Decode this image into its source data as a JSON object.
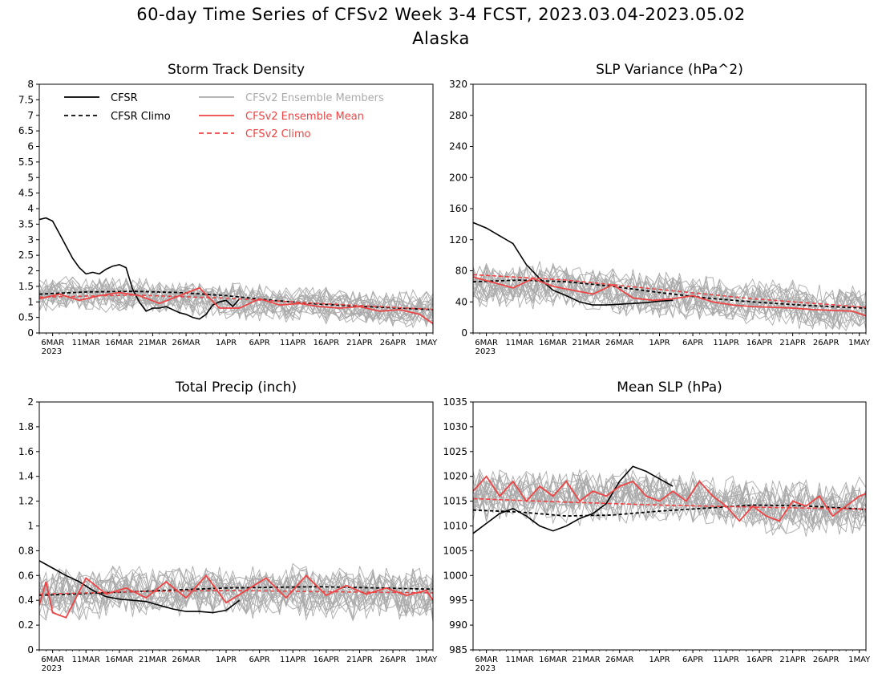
{
  "figure": {
    "title_line1": "60-day Time Series of CFSv2 Week 3-4 FCST, 2023.03.04-2023.05.02",
    "title_line2": "Alaska",
    "x_year_label": "2023"
  },
  "colors": {
    "cfsr": "#000000",
    "ensemble_member": "#aaaaaa",
    "ensemble_mean": "#ee4444",
    "cfsv2_climo": "#ee4444",
    "axis": "#000000"
  },
  "legend": {
    "cfsr": "CFSR",
    "cfsr_climo": "CFSR Climo",
    "members": "CFSv2 Ensemble Members",
    "ens_mean": "CFSv2 Ensemble Mean",
    "cfsv2_climo": "CFSv2 Climo"
  },
  "chart_data": [
    {
      "type": "line",
      "title": "Storm Track Density",
      "x_start": "2023-03-04",
      "x_end": "2023-05-02",
      "x_ticks": [
        "6MAR",
        "11MAR",
        "16MAR",
        "21MAR",
        "26MAR",
        "1APR",
        "6APR",
        "11APR",
        "16APR",
        "21APR",
        "26APR",
        "1MAY"
      ],
      "x_tick_dates": [
        "2023-03-06",
        "2023-03-11",
        "2023-03-16",
        "2023-03-21",
        "2023-03-26",
        "2023-04-01",
        "2023-04-06",
        "2023-04-11",
        "2023-04-16",
        "2023-04-21",
        "2023-04-26",
        "2023-05-01"
      ],
      "ylim": [
        0,
        8
      ],
      "y_ticks": [
        0,
        0.5,
        1,
        1.5,
        2,
        2.5,
        3,
        3.5,
        4,
        4.5,
        5,
        5.5,
        6,
        6.5,
        7,
        7.5,
        8
      ],
      "legend_location": "top-left",
      "series": [
        {
          "name": "CFSR",
          "style": "solid-black",
          "x": [
            "2023-03-04",
            "2023-03-05",
            "2023-03-06",
            "2023-03-07",
            "2023-03-08",
            "2023-03-09",
            "2023-03-10",
            "2023-03-11",
            "2023-03-12",
            "2023-03-13",
            "2023-03-14",
            "2023-03-15",
            "2023-03-16",
            "2023-03-17",
            "2023-03-18",
            "2023-03-19",
            "2023-03-20",
            "2023-03-21",
            "2023-03-22",
            "2023-03-23",
            "2023-03-24",
            "2023-03-25",
            "2023-03-26",
            "2023-03-27",
            "2023-03-28",
            "2023-03-29",
            "2023-03-30",
            "2023-03-31",
            "2023-04-01",
            "2023-04-02",
            "2023-04-03"
          ],
          "y": [
            3.65,
            3.7,
            3.6,
            3.2,
            2.8,
            2.4,
            2.1,
            1.9,
            1.95,
            1.9,
            2.05,
            2.15,
            2.2,
            2.1,
            1.4,
            1.0,
            0.7,
            0.8,
            0.8,
            0.85,
            0.75,
            0.65,
            0.6,
            0.5,
            0.45,
            0.6,
            0.9,
            1.0,
            1.05,
            0.85,
            1.1
          ]
        },
        {
          "name": "CFSR Climo",
          "style": "dashed-black",
          "x": [
            "2023-03-04",
            "2023-03-11",
            "2023-03-18",
            "2023-03-25",
            "2023-04-01",
            "2023-04-08",
            "2023-04-15",
            "2023-04-22",
            "2023-04-29",
            "2023-05-02"
          ],
          "y": [
            1.25,
            1.32,
            1.34,
            1.3,
            1.2,
            1.05,
            0.93,
            0.85,
            0.78,
            0.75
          ]
        },
        {
          "name": "CFSv2 Ensemble Mean",
          "style": "solid-red",
          "x": [
            "2023-03-04",
            "2023-03-07",
            "2023-03-10",
            "2023-03-13",
            "2023-03-16",
            "2023-03-19",
            "2023-03-22",
            "2023-03-25",
            "2023-03-28",
            "2023-03-31",
            "2023-04-03",
            "2023-04-06",
            "2023-04-09",
            "2023-04-12",
            "2023-04-15",
            "2023-04-18",
            "2023-04-21",
            "2023-04-24",
            "2023-04-27",
            "2023-04-30",
            "2023-05-02"
          ],
          "y": [
            1.1,
            1.25,
            1.05,
            1.2,
            1.3,
            1.2,
            0.95,
            1.2,
            1.45,
            0.8,
            0.8,
            1.1,
            0.9,
            0.95,
            0.85,
            0.8,
            0.85,
            0.7,
            0.75,
            0.6,
            0.3
          ]
        },
        {
          "name": "CFSv2 Climo",
          "style": "dashed-red",
          "x": [
            "2023-03-04",
            "2023-03-18",
            "2023-04-01",
            "2023-04-15",
            "2023-05-02"
          ],
          "y": [
            1.15,
            1.22,
            1.12,
            0.95,
            0.76
          ]
        }
      ],
      "members": {
        "count": 20,
        "base": [
          1.2,
          1.25,
          1.25,
          1.2,
          1.1,
          1.0,
          0.95,
          0.9,
          0.85,
          0.78,
          0.72
        ],
        "spread": 0.55
      }
    },
    {
      "type": "line",
      "title": "SLP Variance (hPa^2)",
      "x_start": "2023-03-04",
      "x_end": "2023-05-02",
      "x_ticks": [
        "6MAR",
        "11MAR",
        "16MAR",
        "21MAR",
        "26MAR",
        "1APR",
        "6APR",
        "11APR",
        "16APR",
        "21APR",
        "26APR",
        "1MAY"
      ],
      "x_tick_dates": [
        "2023-03-06",
        "2023-03-11",
        "2023-03-16",
        "2023-03-21",
        "2023-03-26",
        "2023-04-01",
        "2023-04-06",
        "2023-04-11",
        "2023-04-16",
        "2023-04-21",
        "2023-04-26",
        "2023-05-01"
      ],
      "ylim": [
        0,
        320
      ],
      "y_ticks": [
        0,
        40,
        80,
        120,
        160,
        200,
        240,
        280,
        320
      ],
      "series": [
        {
          "name": "CFSR",
          "style": "solid-black",
          "x": [
            "2023-03-04",
            "2023-03-06",
            "2023-03-08",
            "2023-03-10",
            "2023-03-12",
            "2023-03-14",
            "2023-03-16",
            "2023-03-18",
            "2023-03-20",
            "2023-03-22",
            "2023-03-24",
            "2023-03-26",
            "2023-03-28",
            "2023-03-30",
            "2023-04-01",
            "2023-04-03"
          ],
          "y": [
            142,
            135,
            125,
            115,
            88,
            70,
            55,
            48,
            40,
            36,
            36,
            37,
            38,
            39,
            41,
            42
          ]
        },
        {
          "name": "CFSR Climo",
          "style": "dashed-black",
          "x": [
            "2023-03-04",
            "2023-03-11",
            "2023-03-18",
            "2023-03-25",
            "2023-04-01",
            "2023-04-08",
            "2023-04-15",
            "2023-04-22",
            "2023-04-29",
            "2023-05-02"
          ],
          "y": [
            66,
            68,
            66,
            60,
            52,
            45,
            40,
            36,
            33,
            32
          ]
        },
        {
          "name": "CFSv2 Ensemble Mean",
          "style": "solid-red",
          "x": [
            "2023-03-04",
            "2023-03-07",
            "2023-03-10",
            "2023-03-13",
            "2023-03-16",
            "2023-03-19",
            "2023-03-22",
            "2023-03-25",
            "2023-03-28",
            "2023-03-31",
            "2023-04-03",
            "2023-04-06",
            "2023-04-09",
            "2023-04-12",
            "2023-04-15",
            "2023-04-18",
            "2023-04-21",
            "2023-04-24",
            "2023-04-27",
            "2023-04-30",
            "2023-05-02"
          ],
          "y": [
            72,
            65,
            58,
            70,
            60,
            55,
            50,
            62,
            45,
            42,
            44,
            48,
            40,
            36,
            34,
            33,
            32,
            30,
            29,
            28,
            22
          ]
        },
        {
          "name": "CFSv2 Climo",
          "style": "dashed-red",
          "x": [
            "2023-03-04",
            "2023-03-18",
            "2023-04-01",
            "2023-04-15",
            "2023-05-02"
          ],
          "y": [
            75,
            68,
            56,
            44,
            33
          ]
        }
      ],
      "members": {
        "count": 20,
        "base": [
          62,
          60,
          62,
          58,
          52,
          48,
          44,
          40,
          36,
          32,
          28
        ],
        "spread": 28
      }
    },
    {
      "type": "line",
      "title": "Total Precip (inch)",
      "x_start": "2023-03-04",
      "x_end": "2023-05-02",
      "x_ticks": [
        "6MAR",
        "11MAR",
        "16MAR",
        "21MAR",
        "26MAR",
        "1APR",
        "6APR",
        "11APR",
        "16APR",
        "21APR",
        "26APR",
        "1MAY"
      ],
      "x_tick_dates": [
        "2023-03-06",
        "2023-03-11",
        "2023-03-16",
        "2023-03-21",
        "2023-03-26",
        "2023-04-01",
        "2023-04-06",
        "2023-04-11",
        "2023-04-16",
        "2023-04-21",
        "2023-04-26",
        "2023-05-01"
      ],
      "ylim": [
        0,
        2
      ],
      "y_ticks": [
        0,
        0.2,
        0.4,
        0.6,
        0.8,
        1,
        1.2,
        1.4,
        1.6,
        1.8,
        2
      ],
      "series": [
        {
          "name": "CFSR",
          "style": "solid-black",
          "x": [
            "2023-03-04",
            "2023-03-06",
            "2023-03-08",
            "2023-03-10",
            "2023-03-12",
            "2023-03-14",
            "2023-03-16",
            "2023-03-18",
            "2023-03-20",
            "2023-03-22",
            "2023-03-24",
            "2023-03-26",
            "2023-03-28",
            "2023-03-30",
            "2023-04-01",
            "2023-04-03"
          ],
          "y": [
            0.72,
            0.66,
            0.6,
            0.55,
            0.48,
            0.43,
            0.41,
            0.4,
            0.39,
            0.36,
            0.33,
            0.31,
            0.31,
            0.3,
            0.32,
            0.4
          ]
        },
        {
          "name": "CFSR Climo",
          "style": "dashed-black",
          "x": [
            "2023-03-04",
            "2023-03-18",
            "2023-04-01",
            "2023-04-15",
            "2023-05-02"
          ],
          "y": [
            0.44,
            0.47,
            0.5,
            0.51,
            0.49
          ]
        },
        {
          "name": "CFSv2 Ensemble Mean",
          "style": "solid-red",
          "x": [
            "2023-03-04",
            "2023-03-05",
            "2023-03-06",
            "2023-03-08",
            "2023-03-11",
            "2023-03-14",
            "2023-03-17",
            "2023-03-20",
            "2023-03-23",
            "2023-03-26",
            "2023-03-29",
            "2023-04-01",
            "2023-04-04",
            "2023-04-07",
            "2023-04-10",
            "2023-04-13",
            "2023-04-16",
            "2023-04-19",
            "2023-04-22",
            "2023-04-25",
            "2023-04-28",
            "2023-05-01",
            "2023-05-02"
          ],
          "y": [
            0.36,
            0.55,
            0.3,
            0.26,
            0.58,
            0.45,
            0.5,
            0.42,
            0.55,
            0.42,
            0.6,
            0.38,
            0.48,
            0.58,
            0.42,
            0.6,
            0.44,
            0.52,
            0.45,
            0.5,
            0.44,
            0.48,
            0.4
          ]
        },
        {
          "name": "CFSv2 Climo",
          "style": "dashed-red",
          "x": [
            "2023-03-04",
            "2023-03-18",
            "2023-04-01",
            "2023-04-15",
            "2023-05-02"
          ],
          "y": [
            0.45,
            0.47,
            0.48,
            0.47,
            0.46
          ]
        }
      ],
      "members": {
        "count": 20,
        "base": [
          0.45,
          0.47,
          0.48,
          0.48,
          0.48,
          0.48,
          0.47,
          0.47,
          0.46,
          0.46,
          0.45
        ],
        "spread": 0.2
      }
    },
    {
      "type": "line",
      "title": "Mean SLP (hPa)",
      "x_start": "2023-03-04",
      "x_end": "2023-05-02",
      "x_ticks": [
        "6MAR",
        "11MAR",
        "16MAR",
        "21MAR",
        "26MAR",
        "1APR",
        "6APR",
        "11APR",
        "16APR",
        "21APR",
        "26APR",
        "1MAY"
      ],
      "x_tick_dates": [
        "2023-03-06",
        "2023-03-11",
        "2023-03-16",
        "2023-03-21",
        "2023-03-26",
        "2023-04-01",
        "2023-04-06",
        "2023-04-11",
        "2023-04-16",
        "2023-04-21",
        "2023-04-26",
        "2023-05-01"
      ],
      "ylim": [
        985,
        1035
      ],
      "y_ticks": [
        985,
        990,
        995,
        1000,
        1005,
        1010,
        1015,
        1020,
        1025,
        1030,
        1035
      ],
      "series": [
        {
          "name": "CFSR",
          "style": "solid-black",
          "x": [
            "2023-03-04",
            "2023-03-06",
            "2023-03-08",
            "2023-03-10",
            "2023-03-12",
            "2023-03-14",
            "2023-03-16",
            "2023-03-18",
            "2023-03-20",
            "2023-03-22",
            "2023-03-24",
            "2023-03-26",
            "2023-03-28",
            "2023-03-30",
            "2023-04-01",
            "2023-04-03"
          ],
          "y": [
            1008.5,
            1010.5,
            1012.5,
            1013.5,
            1012,
            1010,
            1009,
            1010,
            1011.5,
            1012.5,
            1014.5,
            1019,
            1022,
            1021,
            1019.5,
            1018
          ]
        },
        {
          "name": "CFSR Climo",
          "style": "dashed-black",
          "x": [
            "2023-03-04",
            "2023-03-11",
            "2023-03-18",
            "2023-03-25",
            "2023-04-01",
            "2023-04-08",
            "2023-04-15",
            "2023-04-22",
            "2023-04-29",
            "2023-05-02"
          ],
          "y": [
            1013.2,
            1012.8,
            1012,
            1012.2,
            1013,
            1013.6,
            1014.2,
            1014.1,
            1013.6,
            1013.3
          ]
        },
        {
          "name": "CFSv2 Ensemble Mean",
          "style": "solid-red",
          "x": [
            "2023-03-04",
            "2023-03-06",
            "2023-03-08",
            "2023-03-10",
            "2023-03-12",
            "2023-03-14",
            "2023-03-16",
            "2023-03-18",
            "2023-03-20",
            "2023-03-22",
            "2023-03-24",
            "2023-03-26",
            "2023-03-28",
            "2023-03-30",
            "2023-04-01",
            "2023-04-03",
            "2023-04-05",
            "2023-04-07",
            "2023-04-09",
            "2023-04-11",
            "2023-04-13",
            "2023-04-15",
            "2023-04-17",
            "2023-04-19",
            "2023-04-21",
            "2023-04-23",
            "2023-04-25",
            "2023-04-27",
            "2023-04-29",
            "2023-05-01",
            "2023-05-02"
          ],
          "y": [
            1017,
            1020,
            1016,
            1019,
            1015,
            1018,
            1016,
            1019,
            1015,
            1017,
            1016,
            1018,
            1019,
            1016,
            1015,
            1017,
            1015,
            1019,
            1016,
            1014,
            1011,
            1014,
            1012,
            1011,
            1015,
            1014,
            1016,
            1012,
            1014,
            1016,
            1016.5
          ]
        },
        {
          "name": "CFSv2 Climo",
          "style": "dashed-red",
          "x": [
            "2023-03-04",
            "2023-03-18",
            "2023-04-01",
            "2023-04-15",
            "2023-05-02"
          ],
          "y": [
            1015.5,
            1014.8,
            1014.2,
            1013.8,
            1013.4
          ]
        }
      ],
      "members": {
        "count": 20,
        "base": [
          1016,
          1016.5,
          1016,
          1016,
          1016.5,
          1016,
          1015,
          1014,
          1013.5,
          1013.5,
          1014
        ],
        "spread": 5
      }
    }
  ]
}
